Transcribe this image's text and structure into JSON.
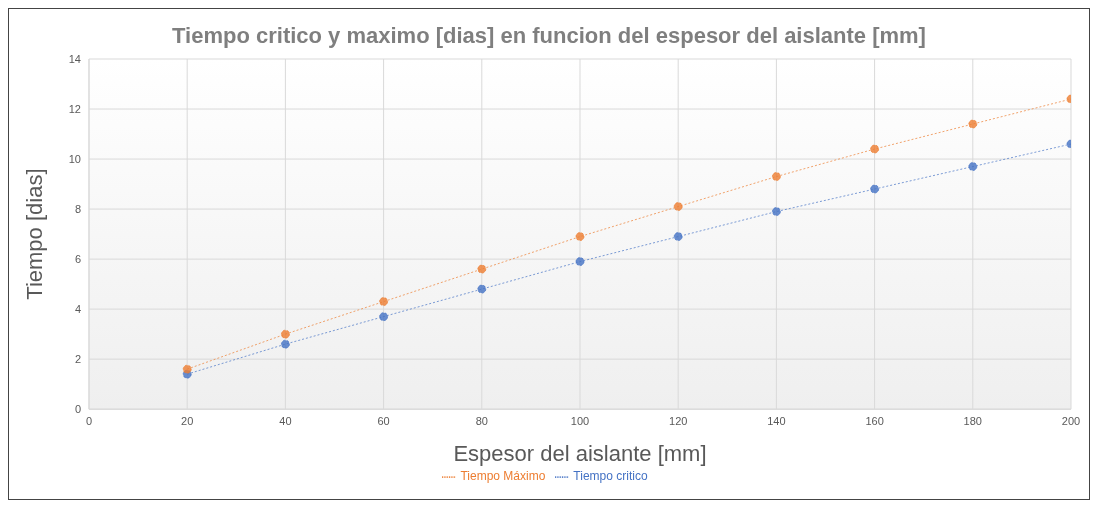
{
  "chart_data": {
    "type": "line",
    "title": "Tiempo critico y maximo [dias] en funcion del espesor del aislante [mm]",
    "xlabel": "Espesor del aislante [mm]",
    "ylabel": "Tiempo [dias]",
    "x": [
      20,
      40,
      60,
      80,
      100,
      120,
      140,
      160,
      180,
      200
    ],
    "series": [
      {
        "name": "Tiempo critico",
        "color": "#4472c4",
        "values": [
          1.4,
          2.6,
          3.7,
          4.8,
          5.9,
          6.9,
          7.9,
          8.8,
          9.7,
          10.6
        ]
      },
      {
        "name": "Tiempo Máximo",
        "color": "#ed7d31",
        "values": [
          1.6,
          3.0,
          4.3,
          5.6,
          6.9,
          8.1,
          9.3,
          10.4,
          11.4,
          12.4
        ]
      }
    ],
    "xlim": [
      0,
      200
    ],
    "xticks": [
      0,
      20,
      40,
      60,
      80,
      100,
      120,
      140,
      160,
      180,
      200
    ],
    "ylim": [
      0,
      14
    ],
    "yticks": [
      0,
      2,
      4,
      6,
      8,
      10,
      12,
      14
    ],
    "grid": true,
    "legend": "bottom",
    "marker": "circle",
    "line_style": "dotted"
  }
}
